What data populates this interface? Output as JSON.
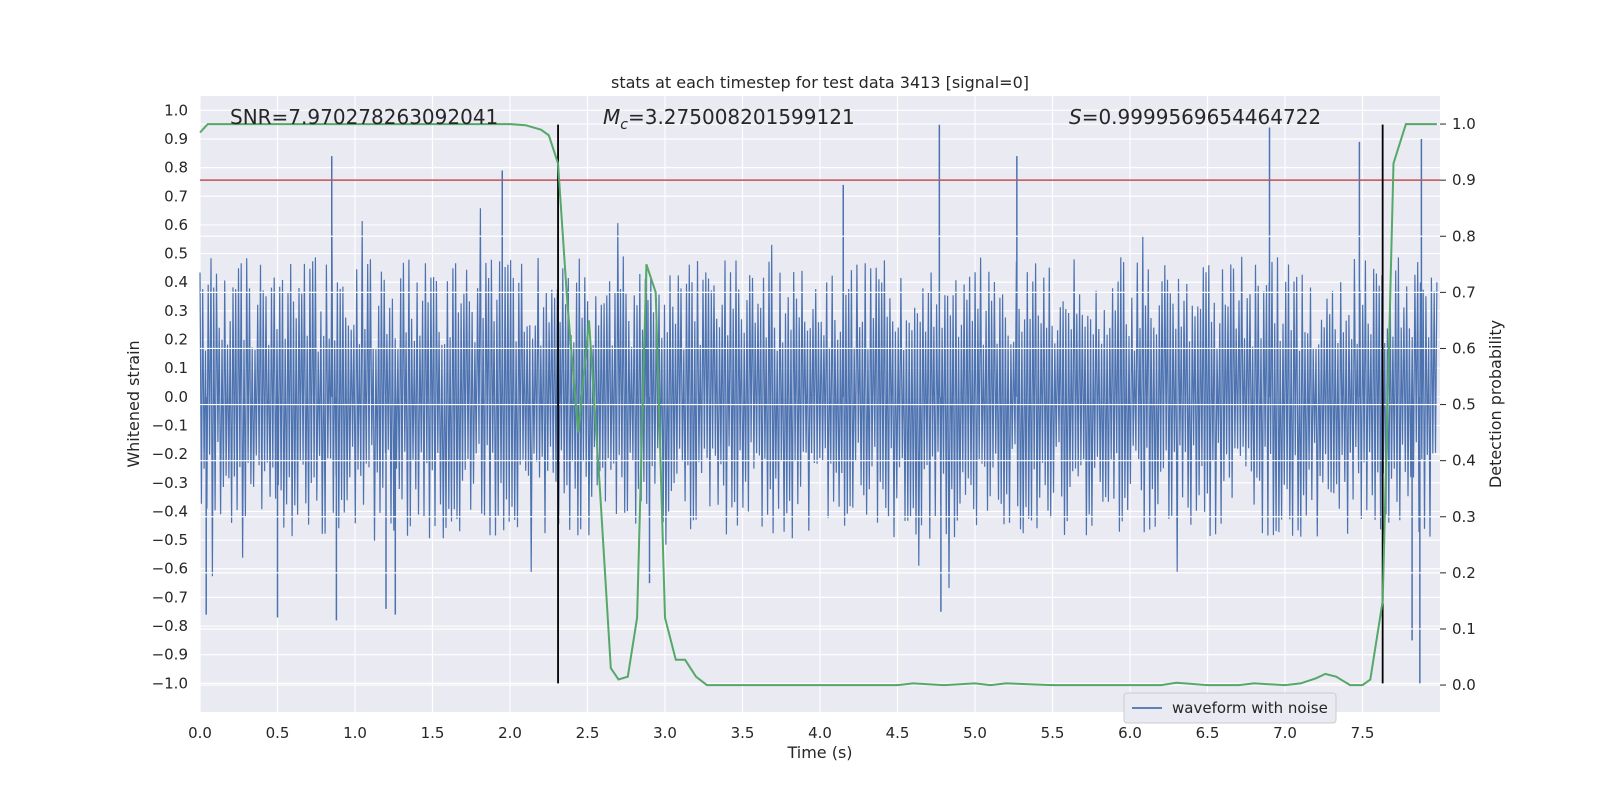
{
  "chart_data": {
    "type": "line",
    "title": "stats at each timestep for test data 3413 [signal=0]",
    "xlabel": "Time (s)",
    "ylabel": "Whitened strain",
    "y2label": "Detection probability",
    "xlim": [
      0.0,
      8.0
    ],
    "ylim": [
      -1.1,
      1.05
    ],
    "y2lim": [
      -0.048,
      1.05
    ],
    "x_ticks": [
      "0.0",
      "0.5",
      "1.0",
      "1.5",
      "2.0",
      "2.5",
      "3.0",
      "3.5",
      "4.0",
      "4.5",
      "5.0",
      "5.5",
      "6.0",
      "6.5",
      "7.0",
      "7.5"
    ],
    "y_ticks": [
      "1.0",
      "0.9",
      "0.8",
      "0.7",
      "0.6",
      "0.5",
      "0.4",
      "0.3",
      "0.2",
      "0.1",
      "0.0",
      "−0.1",
      "−0.2",
      "−0.3",
      "−0.4",
      "−0.5",
      "−0.6",
      "−0.7",
      "−0.8",
      "−0.9",
      "−1.0"
    ],
    "y2_ticks": [
      "1.0",
      "0.9",
      "0.8",
      "0.7",
      "0.6",
      "0.5",
      "0.4",
      "0.3",
      "0.2",
      "0.1",
      "0.0"
    ],
    "annotations": {
      "snr": "SNR=7.970278263092041",
      "mc_symbol": "M",
      "mc_sub": "c",
      "mc_value": "=3.275008201599121",
      "s_symbol": "S",
      "s_value": "=0.9999569654464722"
    },
    "legend": {
      "entries": [
        "waveform with noise"
      ],
      "position": "lower-right"
    },
    "threshold_line": {
      "axis": "right",
      "value": 0.9,
      "color": "#c44e52"
    },
    "vertical_lines": {
      "x": [
        2.31,
        7.63
      ],
      "ymin": -1.0,
      "ymax": 0.95,
      "color": "#000000"
    },
    "noise_series": {
      "name": "waveform with noise",
      "color": "#4c72b0",
      "n_points": 900,
      "typical_upper": 0.45,
      "typical_lower": -0.45,
      "spikes": [
        {
          "x": 0.04,
          "y": -0.76
        },
        {
          "x": 0.5,
          "y": -0.77
        },
        {
          "x": 0.85,
          "y": 0.84
        },
        {
          "x": 0.88,
          "y": -0.78
        },
        {
          "x": 1.2,
          "y": -0.74
        },
        {
          "x": 1.26,
          "y": -0.76
        },
        {
          "x": 1.95,
          "y": 0.79
        },
        {
          "x": 4.77,
          "y": 0.95
        },
        {
          "x": 5.27,
          "y": 0.84
        },
        {
          "x": 4.15,
          "y": 0.74
        },
        {
          "x": 6.9,
          "y": 0.94
        },
        {
          "x": 7.48,
          "y": 0.89
        },
        {
          "x": 7.88,
          "y": 0.9
        },
        {
          "x": 7.87,
          "y": -1.0
        },
        {
          "x": 7.82,
          "y": -0.85
        },
        {
          "x": 4.78,
          "y": -0.75
        },
        {
          "x": 2.88,
          "y": 0.46
        },
        {
          "x": 2.9,
          "y": -0.65
        }
      ]
    },
    "probability_series": {
      "name": "detection probability",
      "color": "#55a868",
      "x": [
        0.0,
        0.05,
        0.3,
        1.0,
        1.5,
        2.0,
        2.1,
        2.2,
        2.25,
        2.31,
        2.37,
        2.44,
        2.51,
        2.58,
        2.65,
        2.7,
        2.76,
        2.82,
        2.88,
        2.94,
        3.0,
        3.07,
        3.13,
        3.2,
        3.27,
        3.5,
        4.0,
        4.5,
        4.6,
        4.8,
        5.0,
        5.1,
        5.2,
        5.5,
        6.0,
        6.2,
        6.3,
        6.5,
        6.7,
        6.8,
        7.0,
        7.1,
        7.2,
        7.26,
        7.33,
        7.42,
        7.5,
        7.55,
        7.63,
        7.7,
        7.78,
        8.0
      ],
      "y": [
        0.985,
        1.0,
        1.0,
        1.0,
        1.0,
        1.0,
        0.998,
        0.99,
        0.98,
        0.93,
        0.68,
        0.45,
        0.65,
        0.35,
        0.03,
        0.01,
        0.015,
        0.12,
        0.75,
        0.7,
        0.12,
        0.045,
        0.045,
        0.015,
        0.0,
        0.0,
        0.0,
        0.0,
        0.003,
        0.0,
        0.003,
        0.0,
        0.003,
        0.0,
        0.0,
        0.0,
        0.004,
        0.0,
        0.0,
        0.003,
        0.0,
        0.003,
        0.012,
        0.02,
        0.015,
        0.0,
        0.0,
        0.01,
        0.15,
        0.93,
        1.0,
        1.0
      ]
    }
  }
}
